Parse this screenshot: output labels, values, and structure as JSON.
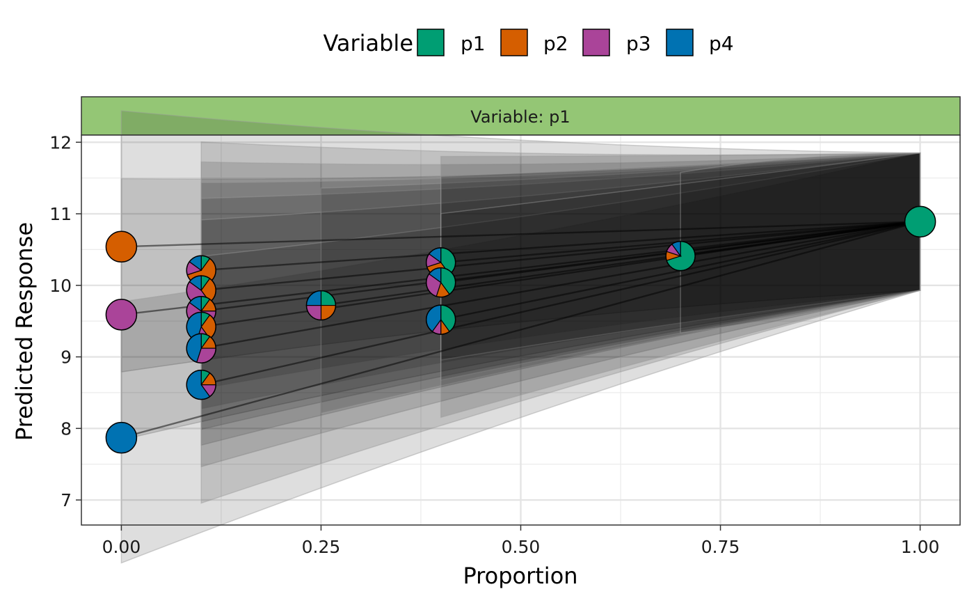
{
  "chart_data": {
    "type": "scatter",
    "title": "",
    "xlabel": "Proportion",
    "ylabel": "Predicted Response",
    "xlim": [
      -0.05,
      1.05
    ],
    "ylim": [
      6.65,
      12.1
    ],
    "x_ticks": [
      "0.00",
      "0.25",
      "0.50",
      "0.75",
      "1.00"
    ],
    "x_tick_values": [
      0,
      0.25,
      0.5,
      0.75,
      1.0
    ],
    "y_ticks": [
      "7",
      "8",
      "9",
      "10",
      "11",
      "12"
    ],
    "y_tick_values": [
      7,
      8,
      9,
      10,
      11,
      12
    ],
    "grid": true,
    "legend_position": "top",
    "legend": {
      "title": "Variable",
      "entries": [
        {
          "label": "p1",
          "color": "#009E73"
        },
        {
          "label": "p2",
          "color": "#D55E00"
        },
        {
          "label": "p3",
          "color": "#AA4499"
        },
        {
          "label": "p4",
          "color": "#0072B2"
        }
      ]
    },
    "facet": {
      "label": "Variable: p1",
      "color": "#94C675"
    },
    "end_point": {
      "x": 1.0,
      "y": 10.89
    },
    "points": [
      {
        "x": 0.0,
        "y": 10.54,
        "props": [
          0,
          1,
          0,
          0
        ]
      },
      {
        "x": 0.0,
        "y": 9.59,
        "props": [
          0,
          0,
          1,
          0
        ]
      },
      {
        "x": 0.0,
        "y": 7.87,
        "props": [
          0,
          0,
          0,
          1
        ]
      },
      {
        "x": 0.1,
        "y": 10.21,
        "props": [
          0.1,
          0.6,
          0.15,
          0.15
        ]
      },
      {
        "x": 0.1,
        "y": 9.93,
        "props": [
          0.1,
          0.3,
          0.45,
          0.15
        ]
      },
      {
        "x": 0.1,
        "y": 9.64,
        "props": [
          0.1,
          0.15,
          0.6,
          0.15
        ]
      },
      {
        "x": 0.1,
        "y": 9.42,
        "props": [
          0.1,
          0.3,
          0.15,
          0.45
        ]
      },
      {
        "x": 0.1,
        "y": 9.12,
        "props": [
          0.1,
          0.15,
          0.3,
          0.45
        ]
      },
      {
        "x": 0.1,
        "y": 8.61,
        "props": [
          0.1,
          0.15,
          0.15,
          0.6
        ]
      },
      {
        "x": 0.25,
        "y": 9.72,
        "props": [
          0.25,
          0.25,
          0.25,
          0.25
        ]
      },
      {
        "x": 0.4,
        "y": 10.32,
        "props": [
          0.4,
          0.3,
          0.15,
          0.15
        ]
      },
      {
        "x": 0.4,
        "y": 10.04,
        "props": [
          0.4,
          0.15,
          0.3,
          0.15
        ]
      },
      {
        "x": 0.4,
        "y": 9.52,
        "props": [
          0.4,
          0.1,
          0.1,
          0.4
        ]
      },
      {
        "x": 0.7,
        "y": 10.41,
        "props": [
          0.7,
          0.1,
          0.1,
          0.1
        ]
      },
      {
        "x": 1.0,
        "y": 10.89,
        "props": [
          1,
          0,
          0,
          0
        ]
      }
    ]
  }
}
